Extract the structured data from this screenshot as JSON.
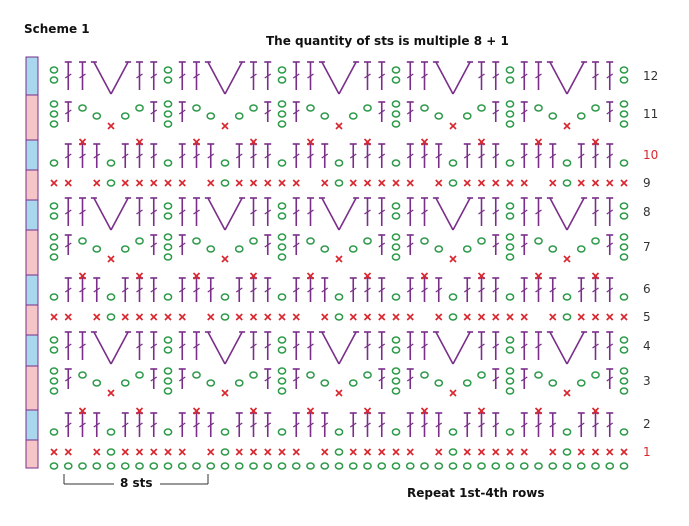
{
  "scheme_title": "Scheme 1",
  "header_note": "The quantity of sts is multiple 8 + 1",
  "repeat_note": "Repeat 1st-4th rows",
  "width_label": "8 sts",
  "row_numbers": [
    {
      "label": "1",
      "color": "#d9282f"
    },
    {
      "label": "2",
      "color": "#333333"
    },
    {
      "label": "3",
      "color": "#333333"
    },
    {
      "label": "4",
      "color": "#333333"
    },
    {
      "label": "5",
      "color": "#333333"
    },
    {
      "label": "6",
      "color": "#333333"
    },
    {
      "label": "7",
      "color": "#333333"
    },
    {
      "label": "8",
      "color": "#333333"
    },
    {
      "label": "9",
      "color": "#333333"
    },
    {
      "label": "10",
      "color": "#d9282f"
    },
    {
      "label": "11",
      "color": "#333333"
    },
    {
      "label": "12",
      "color": "#333333"
    }
  ],
  "colors": {
    "dc": "#7a2e8a",
    "chain": "#2e9a4a",
    "sc": "#d9282f",
    "bar_light": "#a9d7ee",
    "bar_pink": "#f4c6c8",
    "bar_border": "#7a2e8a"
  }
}
